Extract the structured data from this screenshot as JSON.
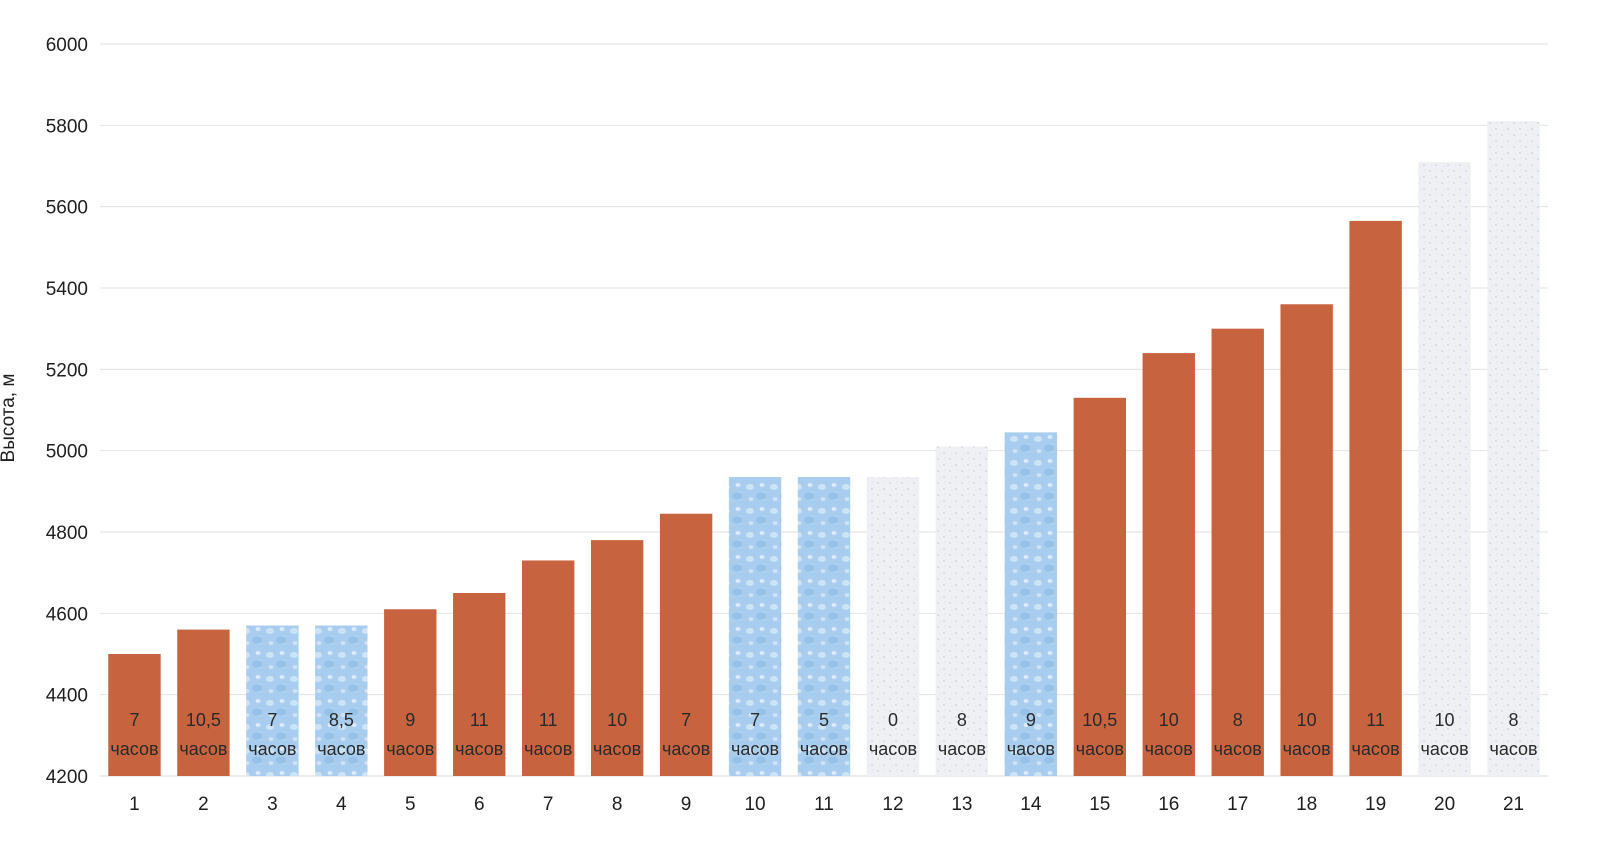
{
  "colors": {
    "rust": "#c8633f",
    "blue": "#a9cdee",
    "pale": "#e9ecf1",
    "text": "#1f1f1f",
    "grid": "#e2e2e2"
  },
  "chart_data": {
    "type": "bar",
    "title": "",
    "xlabel": "",
    "ylabel": "Высота, м",
    "ylim": [
      4200,
      6000
    ],
    "yticks": [
      4200,
      4400,
      4600,
      4800,
      5000,
      5200,
      5400,
      5600,
      5800,
      6000
    ],
    "grid": true,
    "categories": [
      "1",
      "2",
      "3",
      "4",
      "5",
      "6",
      "7",
      "8",
      "9",
      "10",
      "11",
      "12",
      "13",
      "14",
      "15",
      "16",
      "17",
      "18",
      "19",
      "20",
      "21"
    ],
    "values": [
      4500,
      4560,
      4570,
      4570,
      4610,
      4650,
      4730,
      4780,
      4845,
      4935,
      4935,
      4935,
      5010,
      5045,
      5130,
      5240,
      5300,
      5360,
      5565,
      5710,
      5810
    ],
    "styles": [
      "rust",
      "rust",
      "blue",
      "blue",
      "rust",
      "rust",
      "rust",
      "rust",
      "rust",
      "blue",
      "blue",
      "pale",
      "pale",
      "blue",
      "rust",
      "rust",
      "rust",
      "rust",
      "rust",
      "pale",
      "pale"
    ],
    "hours": [
      "7",
      "10,5",
      "7",
      "8,5",
      "9",
      "11",
      "11",
      "10",
      "7",
      "7",
      "5",
      "0",
      "8",
      "9",
      "10,5",
      "10",
      "8",
      "10",
      "11",
      "10",
      "8"
    ],
    "hours_unit": "часов"
  }
}
